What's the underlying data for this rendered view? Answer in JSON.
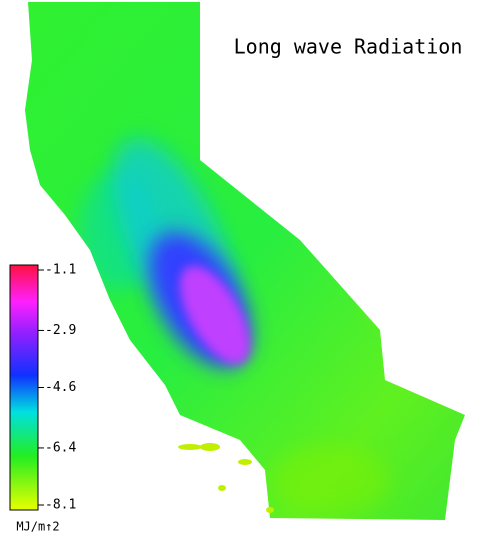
{
  "title": "Long wave Radiation",
  "colorbar": {
    "lim": [
      -8.1,
      -1.1
    ],
    "ticks": [
      -1.1,
      -2.9,
      -4.6,
      -6.4,
      -8.1
    ],
    "unit": "MJ/m↑2"
  }
}
